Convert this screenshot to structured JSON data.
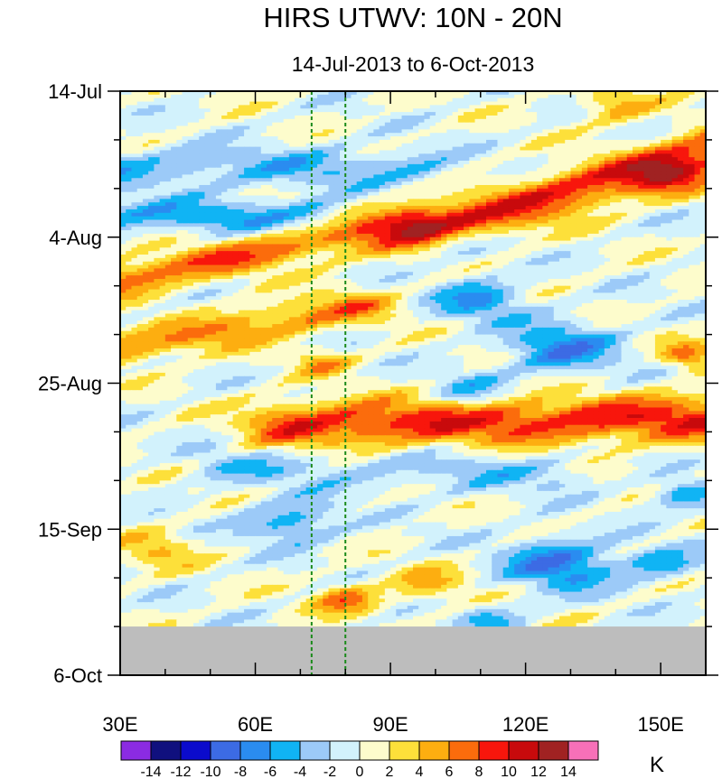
{
  "chart_data": {
    "type": "heatmap",
    "title": "HIRS UTWV: 10N - 20N",
    "subtitle": "14-Jul-2013 to 6-Oct-2013",
    "xaxis": {
      "range": [
        30,
        160
      ],
      "ticks": [
        30,
        60,
        90,
        120,
        150
      ],
      "tick_labels": [
        "30E",
        "60E",
        "90E",
        "120E",
        "150E"
      ],
      "minor_step": 10
    },
    "yaxis": {
      "range_days": [
        0,
        84
      ],
      "ticks": [
        0,
        21,
        42,
        63,
        84
      ],
      "tick_labels": [
        "14-Jul",
        "4-Aug",
        "25-Aug",
        "15-Sep",
        "6-Oct"
      ],
      "minor_step_days": 7,
      "direction": "time increases downward"
    },
    "reference_lines": [
      {
        "lon": 72.5,
        "style": "dashed",
        "color": "#1a8a1a"
      },
      {
        "lon": 80,
        "style": "dashed",
        "color": "#1a8a1a"
      }
    ],
    "missing_data": {
      "from_day": 77,
      "to_day": 84,
      "color": "#bdbdbd"
    },
    "colorbar": {
      "unit": "K",
      "levels": [
        -14,
        -12,
        -10,
        -8,
        -6,
        -4,
        -2,
        0,
        2,
        4,
        6,
        8,
        10,
        12,
        14
      ],
      "level_labels": [
        "-14",
        "-12",
        "-10",
        "-8",
        "-6",
        "-4",
        "-2",
        "0",
        "2",
        "4",
        "6",
        "8",
        "10",
        "12",
        "14"
      ],
      "colors": [
        "#8b2be2",
        "#10107e",
        "#0b0bcc",
        "#3c6be4",
        "#2a8cf0",
        "#10b4f4",
        "#9ccaf8",
        "#d2f2fc",
        "#fdfccc",
        "#fde03a",
        "#fdae10",
        "#fb6c0c",
        "#f8160c",
        "#c80a0c",
        "#a02222",
        "#f770b8"
      ]
    },
    "features": [
      {
        "name": "warm-streak-1",
        "lon0": 30,
        "day0": 27,
        "lon1": 95,
        "day1": 19,
        "amp": 7,
        "width": 10
      },
      {
        "name": "warm-streak-2",
        "lon0": 32,
        "day0": 37,
        "lon1": 82,
        "day1": 31,
        "amp": 6,
        "width": 9
      },
      {
        "name": "warm-streak-3",
        "lon0": 70,
        "day0": 48,
        "lon1": 160,
        "day1": 47,
        "amp": 9,
        "width": 12
      },
      {
        "name": "warm-streak-4",
        "lon0": 100,
        "day0": 20,
        "lon1": 160,
        "day1": 9,
        "amp": 9,
        "width": 12
      },
      {
        "name": "warm-blob-ne",
        "lon": 152,
        "day": 12,
        "amp": 6,
        "width": 8
      },
      {
        "name": "warm-blob-top",
        "lon": 140,
        "day": 2,
        "amp": 5,
        "width": 8
      },
      {
        "name": "warm-blob-e",
        "lon": 156,
        "day": 38,
        "amp": 7,
        "width": 6
      },
      {
        "name": "warm-blob-s",
        "lon": 80,
        "day": 73,
        "amp": 7,
        "width": 7
      },
      {
        "name": "warm-blob-s2",
        "lon": 98,
        "day": 71,
        "amp": 4,
        "width": 9
      },
      {
        "name": "warm-blob-w",
        "lon": 38,
        "day": 66,
        "amp": 4,
        "width": 9
      },
      {
        "name": "warm-blob-mid",
        "lon": 75,
        "day": 39,
        "amp": 5,
        "width": 6
      },
      {
        "name": "cool-streak-1",
        "lon0": 30,
        "day0": 18,
        "lon1": 72,
        "day1": 18,
        "amp": -5,
        "width": 9
      },
      {
        "name": "cool-streak-2",
        "lon0": 30,
        "day0": 11,
        "lon1": 95,
        "day1": 11,
        "amp": -4,
        "width": 10
      },
      {
        "name": "cool-streak-3",
        "lon0": 55,
        "day0": 54,
        "lon1": 125,
        "day1": 55,
        "amp": -3,
        "width": 10
      },
      {
        "name": "cool-blob-1",
        "lon": 110,
        "day": 30,
        "amp": -6,
        "width": 10
      },
      {
        "name": "cool-blob-2",
        "lon": 128,
        "day": 37,
        "amp": -7,
        "width": 12
      },
      {
        "name": "cool-blob-3",
        "lon": 103,
        "day": 22,
        "amp": -5,
        "width": 9
      },
      {
        "name": "cool-blob-4",
        "lon": 128,
        "day": 68,
        "amp": -8,
        "width": 12
      },
      {
        "name": "cool-blob-5",
        "lon": 68,
        "day": 62,
        "amp": -6,
        "width": 10
      },
      {
        "name": "cool-blob-6",
        "lon": 155,
        "day": 58,
        "amp": -6,
        "width": 7
      },
      {
        "name": "cool-blob-7",
        "lon": 150,
        "day": 68,
        "amp": -5,
        "width": 8
      },
      {
        "name": "cool-blob-8",
        "lon": 108,
        "day": 43,
        "amp": -4,
        "width": 9
      },
      {
        "name": "cool-blob-9",
        "lon": 112,
        "day": 76,
        "amp": -4,
        "width": 7
      }
    ]
  }
}
